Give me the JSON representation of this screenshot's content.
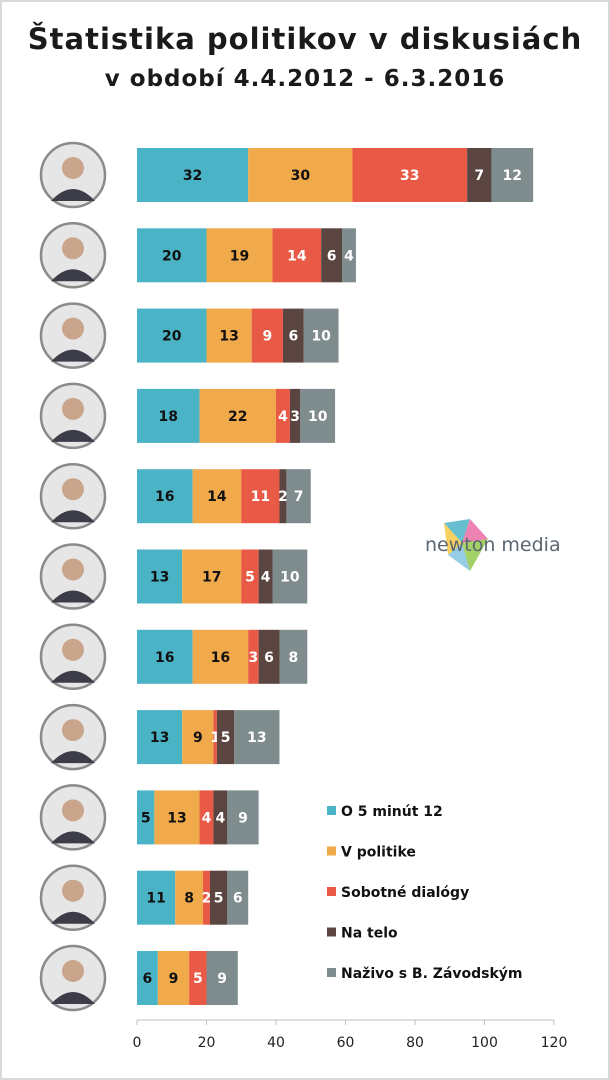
{
  "title": "Štatistika politikov v diskusiách",
  "subtitle": "v období 4.4.2012 - 6.3.2016",
  "watermark": "newton media",
  "chart_data": {
    "type": "bar",
    "orientation": "horizontal",
    "stacked": true,
    "xlim": [
      0,
      120
    ],
    "xticks": [
      0,
      20,
      40,
      60,
      80,
      100,
      120
    ],
    "legend_position": "bottom-right",
    "series": [
      {
        "name": "O 5 minút 12",
        "color": "#4bb3c6",
        "values": [
          32,
          20,
          20,
          18,
          16,
          13,
          16,
          13,
          5,
          11,
          6
        ]
      },
      {
        "name": "V politike",
        "color": "#f0a94b",
        "values": [
          30,
          19,
          13,
          22,
          14,
          17,
          16,
          9,
          13,
          8,
          9
        ]
      },
      {
        "name": "Sobotné dialógy",
        "color": "#e85a45",
        "values": [
          33,
          14,
          9,
          4,
          11,
          5,
          3,
          1,
          4,
          2,
          5
        ]
      },
      {
        "name": "Na telo",
        "color": "#5a4540",
        "values": [
          7,
          6,
          6,
          3,
          2,
          4,
          6,
          5,
          4,
          5,
          0
        ]
      },
      {
        "name": "Naživo s B. Závodským",
        "color": "#7f8c8d",
        "values": [
          12,
          4,
          10,
          10,
          7,
          10,
          8,
          13,
          9,
          6,
          9
        ]
      }
    ]
  }
}
